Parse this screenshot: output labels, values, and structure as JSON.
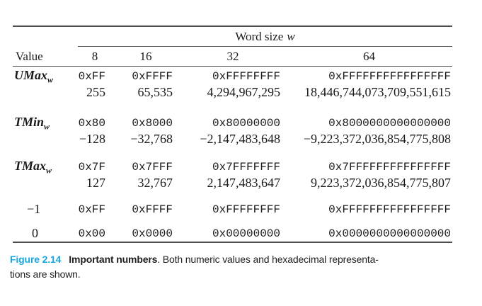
{
  "table": {
    "word_size_label": "Word size",
    "word_size_var": "w",
    "value_header": "Value",
    "col_headers": [
      "8",
      "16",
      "32",
      "64"
    ],
    "rows": [
      {
        "label": "UMax",
        "label_sub": "w",
        "hex": [
          "0xFF",
          "0xFFFF",
          "0xFFFFFFFF",
          "0xFFFFFFFFFFFFFFFF"
        ],
        "dec": [
          "255",
          "65,535",
          "4,294,967,295",
          "18,446,744,073,709,551,615"
        ]
      },
      {
        "label": "TMin",
        "label_sub": "w",
        "hex": [
          "0x80",
          "0x8000",
          "0x80000000",
          "0x8000000000000000"
        ],
        "dec": [
          "−128",
          "−32,768",
          "−2,147,483,648",
          "−9,223,372,036,854,775,808"
        ]
      },
      {
        "label": "TMax",
        "label_sub": "w",
        "hex": [
          "0x7F",
          "0x7FFF",
          "0x7FFFFFFF",
          "0x7FFFFFFFFFFFFFFF"
        ],
        "dec": [
          "127",
          "32,767",
          "2,147,483,647",
          "9,223,372,036,854,775,807"
        ]
      },
      {
        "label": "−1",
        "label_sub": "",
        "hex": [
          "0xFF",
          "0xFFFF",
          "0xFFFFFFFF",
          "0xFFFFFFFFFFFFFFFF"
        ],
        "dec": [
          "",
          "",
          "",
          ""
        ]
      },
      {
        "label": "0",
        "label_sub": "",
        "hex": [
          "0x00",
          "0x0000",
          "0x00000000",
          "0x0000000000000000"
        ],
        "dec": [
          "",
          "",
          "",
          ""
        ]
      }
    ]
  },
  "caption": {
    "figure_label": "Figure 2.14",
    "title": "Important numbers",
    "body_line1": ". Both numeric values and hexadecimal representa-",
    "body_line2": "tions are shown.",
    "accent_color": "#18a7e1"
  }
}
